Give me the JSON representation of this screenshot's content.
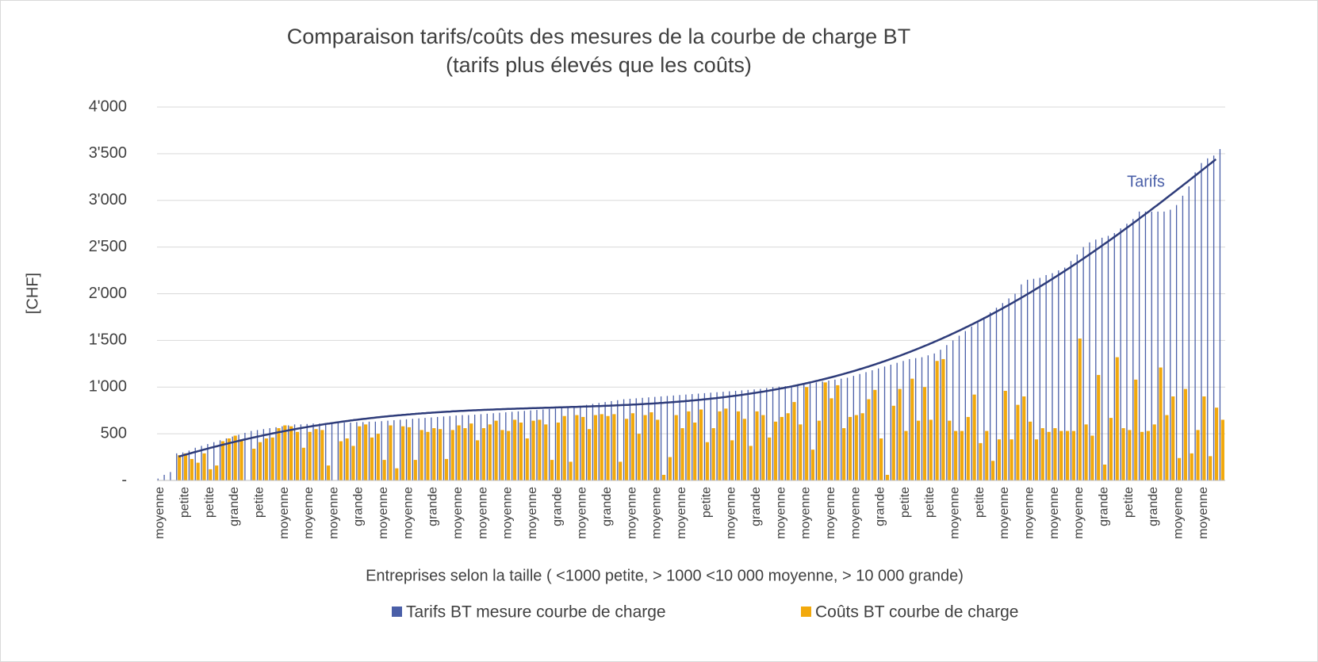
{
  "chart_data": {
    "type": "bar",
    "title": [
      "Comparaison tarifs/coûts des mesures de la courbe de charge BT",
      "(tarifs plus élevés que les coûts)"
    ],
    "y_label": "[CHF]",
    "x_label": "Entreprises selon la taille ( <1000 petite, > 1000 <10 000 moyenne, > 10 000 grande)",
    "annotation": "Tarifs",
    "ylim": [
      0,
      4000
    ],
    "yticks": [
      {
        "value": 0,
        "label": "-"
      },
      500,
      {
        "value": 1000,
        "label": "1'000"
      },
      {
        "value": 1500,
        "label": "1'500"
      },
      {
        "value": 2000,
        "label": "2'000"
      },
      {
        "value": 2500,
        "label": "2'500"
      },
      {
        "value": 3000,
        "label": "3'000"
      },
      {
        "value": 3500,
        "label": "3'500"
      },
      {
        "value": 4000,
        "label": "4'000"
      }
    ],
    "grid": true,
    "legend": "bottom",
    "trendline": {
      "series": 0,
      "color": "#2e3c7a"
    },
    "categories": [
      "moyenne",
      null,
      null,
      null,
      "petite",
      null,
      null,
      null,
      "petite",
      null,
      null,
      null,
      "grande",
      null,
      null,
      null,
      "petite",
      null,
      null,
      null,
      "moyenne",
      null,
      null,
      null,
      "moyenne",
      null,
      null,
      null,
      "moyenne",
      null,
      null,
      null,
      "grande",
      null,
      null,
      null,
      "moyenne",
      null,
      null,
      null,
      "moyenne",
      null,
      null,
      null,
      "grande",
      null,
      null,
      null,
      "moyenne",
      null,
      null,
      null,
      "moyenne",
      null,
      null,
      null,
      "moyenne",
      null,
      null,
      null,
      "moyenne",
      null,
      null,
      null,
      "grande",
      null,
      null,
      null,
      "moyenne",
      null,
      null,
      null,
      "grande",
      null,
      null,
      null,
      "moyenne",
      null,
      null,
      null,
      "moyenne",
      null,
      null,
      null,
      "moyenne",
      null,
      null,
      null,
      "petite",
      null,
      null,
      null,
      "moyenne",
      null,
      null,
      null,
      "grande",
      null,
      null,
      null,
      "moyenne",
      null,
      null,
      null,
      "moyenne",
      null,
      null,
      null,
      "moyenne",
      null,
      null,
      null,
      "moyenne",
      null,
      null,
      null,
      "grande",
      null,
      null,
      null,
      "petite",
      null,
      null,
      null,
      "petite",
      null,
      null,
      null,
      "moyenne",
      null,
      null,
      null,
      "petite",
      null,
      null,
      null,
      "moyenne",
      null,
      null,
      null,
      "moyenne",
      null,
      null,
      null,
      "moyenne",
      null,
      null,
      null,
      "moyenne",
      null,
      null,
      null,
      "grande",
      null,
      null,
      null,
      "petite",
      null,
      null,
      null,
      "grande",
      null,
      null,
      null,
      "moyenne",
      null,
      null,
      null,
      "moyenne",
      null,
      null,
      null
    ],
    "series": [
      {
        "name": "Tarifs BT mesure courbe de charge",
        "color": "#4a5fa8",
        "values": [
          20,
          60,
          90,
          290,
          300,
          320,
          350,
          370,
          390,
          410,
          430,
          450,
          470,
          490,
          510,
          530,
          540,
          550,
          560,
          570,
          580,
          590,
          600,
          600,
          605,
          610,
          610,
          615,
          615,
          620,
          620,
          620,
          625,
          625,
          630,
          630,
          635,
          640,
          645,
          650,
          655,
          660,
          665,
          670,
          675,
          680,
          685,
          690,
          695,
          700,
          700,
          705,
          710,
          715,
          720,
          725,
          730,
          735,
          740,
          745,
          750,
          755,
          760,
          765,
          770,
          775,
          780,
          790,
          800,
          810,
          820,
          830,
          840,
          850,
          860,
          870,
          875,
          880,
          885,
          890,
          895,
          900,
          905,
          910,
          915,
          920,
          925,
          930,
          935,
          940,
          945,
          950,
          955,
          960,
          965,
          970,
          975,
          980,
          990,
          1000,
          1005,
          1010,
          1015,
          1020,
          1030,
          1040,
          1050,
          1060,
          1070,
          1080,
          1090,
          1100,
          1120,
          1140,
          1160,
          1180,
          1200,
          1220,
          1240,
          1260,
          1280,
          1300,
          1310,
          1320,
          1340,
          1360,
          1400,
          1450,
          1500,
          1550,
          1600,
          1650,
          1700,
          1750,
          1800,
          1850,
          1900,
          1950,
          2000,
          2100,
          2150,
          2160,
          2170,
          2200,
          2220,
          2250,
          2280,
          2350,
          2420,
          2500,
          2550,
          2580,
          2600,
          2620,
          2650,
          2700,
          2750,
          2800,
          2880,
          2880,
          2880,
          2880,
          2880,
          2900,
          2950,
          3050,
          3150,
          3300,
          3400,
          3450,
          3480,
          3550
        ]
      },
      {
        "name": "Coûts BT courbe de charge",
        "color": "#f2a90c",
        "values": [
          0,
          0,
          0,
          270,
          290,
          230,
          190,
          290,
          120,
          160,
          420,
          450,
          480,
          440,
          0,
          340,
          410,
          450,
          460,
          560,
          590,
          580,
          520,
          350,
          520,
          550,
          540,
          160,
          0,
          420,
          450,
          370,
          580,
          600,
          460,
          500,
          220,
          590,
          130,
          580,
          570,
          220,
          540,
          520,
          560,
          550,
          230,
          540,
          590,
          560,
          610,
          430,
          560,
          600,
          640,
          540,
          530,
          650,
          620,
          450,
          640,
          650,
          600,
          220,
          620,
          690,
          200,
          700,
          680,
          550,
          700,
          710,
          690,
          710,
          200,
          660,
          720,
          500,
          700,
          730,
          650,
          60,
          250,
          700,
          560,
          740,
          620,
          760,
          410,
          560,
          740,
          770,
          430,
          740,
          660,
          370,
          740,
          700,
          460,
          630,
          680,
          720,
          840,
          600,
          1000,
          330,
          640,
          1050,
          880,
          1020,
          560,
          680,
          700,
          720,
          870,
          970,
          450,
          60,
          800,
          980,
          530,
          1090,
          640,
          1000,
          650,
          1280,
          1300,
          640,
          530,
          530,
          680,
          920,
          400,
          530,
          210,
          440,
          960,
          440,
          810,
          900,
          630,
          440,
          560,
          520,
          560,
          530,
          530,
          530,
          1520,
          600,
          480,
          1130,
          170,
          670,
          1320,
          560,
          540,
          1080,
          520,
          530,
          600,
          1210,
          700,
          900,
          240,
          980,
          290,
          540,
          900,
          260,
          780,
          650
        ]
      }
    ]
  }
}
